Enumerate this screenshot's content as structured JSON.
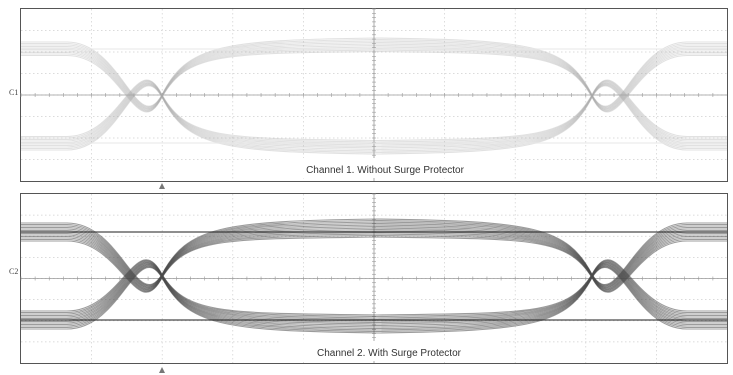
{
  "chart_data": [
    {
      "type": "eye-diagram",
      "channel_label": "C1",
      "caption": "Channel 1. Without Surge Protector",
      "trace_color": "#a9a9a9",
      "grid": true
    },
    {
      "type": "eye-diagram",
      "channel_label": "C2",
      "caption": "Channel 2. With Surge Protector",
      "trace_color": "#4a4a4a",
      "grid": true
    }
  ]
}
